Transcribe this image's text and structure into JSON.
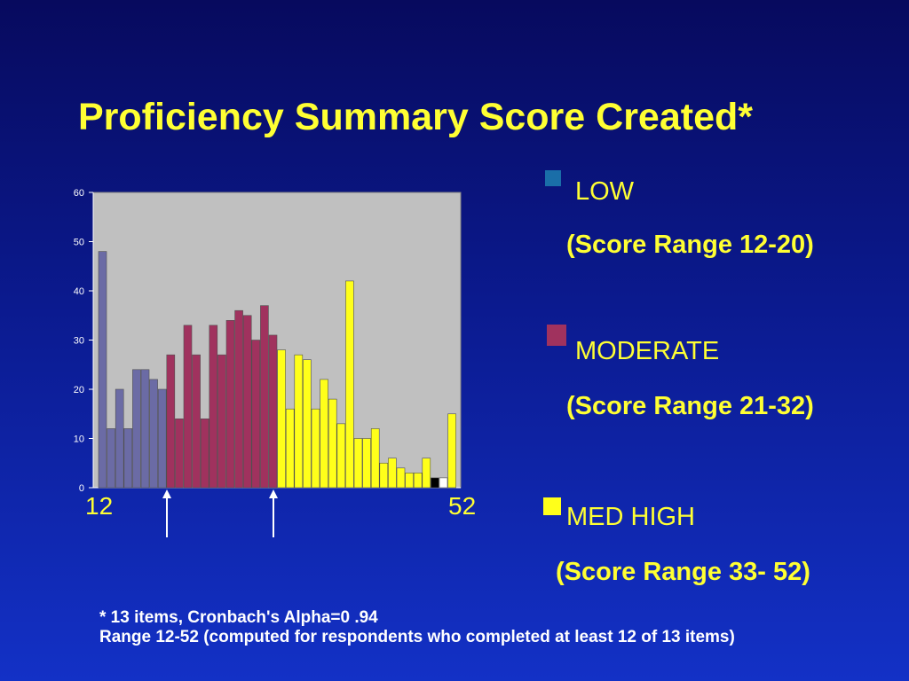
{
  "title": "Proficiency Summary Score Created*",
  "chart_data": {
    "type": "bar",
    "ylim": [
      0,
      60
    ],
    "yticks": [
      0,
      10,
      20,
      30,
      40,
      50,
      60
    ],
    "plot_background": "#c0c0c0",
    "x_range_labels": {
      "start": "12",
      "end": "52"
    },
    "bars": [
      {
        "value": 48,
        "color": "#6b6ba5"
      },
      {
        "value": 12,
        "color": "#6b6ba5"
      },
      {
        "value": 20,
        "color": "#6b6ba5"
      },
      {
        "value": 12,
        "color": "#6b6ba5"
      },
      {
        "value": 24,
        "color": "#6b6ba5"
      },
      {
        "value": 24,
        "color": "#6b6ba5"
      },
      {
        "value": 22,
        "color": "#6b6ba5"
      },
      {
        "value": 20,
        "color": "#6b6ba5"
      },
      {
        "value": 27,
        "color": "#a0325e"
      },
      {
        "value": 14,
        "color": "#a0325e"
      },
      {
        "value": 33,
        "color": "#a0325e"
      },
      {
        "value": 27,
        "color": "#a0325e"
      },
      {
        "value": 14,
        "color": "#a0325e"
      },
      {
        "value": 33,
        "color": "#a0325e"
      },
      {
        "value": 27,
        "color": "#a0325e"
      },
      {
        "value": 34,
        "color": "#a0325e"
      },
      {
        "value": 36,
        "color": "#a0325e"
      },
      {
        "value": 35,
        "color": "#a0325e"
      },
      {
        "value": 30,
        "color": "#a0325e"
      },
      {
        "value": 37,
        "color": "#a0325e"
      },
      {
        "value": 31,
        "color": "#a0325e"
      },
      {
        "value": 28,
        "color": "#ffff1a"
      },
      {
        "value": 16,
        "color": "#ffff1a"
      },
      {
        "value": 27,
        "color": "#ffff1a"
      },
      {
        "value": 26,
        "color": "#ffff1a"
      },
      {
        "value": 16,
        "color": "#ffff1a"
      },
      {
        "value": 22,
        "color": "#ffff1a"
      },
      {
        "value": 18,
        "color": "#ffff1a"
      },
      {
        "value": 13,
        "color": "#ffff1a"
      },
      {
        "value": 42,
        "color": "#ffff1a"
      },
      {
        "value": 10,
        "color": "#ffff1a"
      },
      {
        "value": 10,
        "color": "#ffff1a"
      },
      {
        "value": 12,
        "color": "#ffff1a"
      },
      {
        "value": 5,
        "color": "#ffff1a"
      },
      {
        "value": 6,
        "color": "#ffff1a"
      },
      {
        "value": 4,
        "color": "#ffff1a"
      },
      {
        "value": 3,
        "color": "#ffff1a"
      },
      {
        "value": 3,
        "color": "#ffff1a"
      },
      {
        "value": 6,
        "color": "#ffff1a"
      },
      {
        "value": 2,
        "color": "#000000"
      },
      {
        "value": 2,
        "color": "#ffffff"
      },
      {
        "value": 15,
        "color": "#ffff1a"
      }
    ]
  },
  "legend": [
    {
      "name": "LOW",
      "range": "(Score Range 12-20)",
      "color": "#1a6ea8"
    },
    {
      "name": "MODERATE",
      "range": "(Score Range 21-32)",
      "color": "#a0325e"
    },
    {
      "name": "MED HIGH",
      "range": "(Score Range 33- 52)",
      "color": "#ffff1a"
    }
  ],
  "footnote": {
    "line1": "* 13 items, Cronbach's Alpha=0 .94",
    "line2": "Range 12-52 (computed for respondents who completed at least 12 of 13 items)"
  },
  "colors": {
    "title": "#ffff33",
    "background_top": "#070a5e",
    "background_bottom": "#1331c6"
  }
}
